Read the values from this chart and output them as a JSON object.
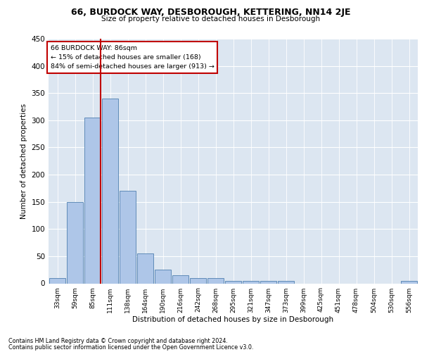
{
  "title": "66, BURDOCK WAY, DESBOROUGH, KETTERING, NN14 2JE",
  "subtitle": "Size of property relative to detached houses in Desborough",
  "xlabel": "Distribution of detached houses by size in Desborough",
  "ylabel": "Number of detached properties",
  "footer1": "Contains HM Land Registry data © Crown copyright and database right 2024.",
  "footer2": "Contains public sector information licensed under the Open Government Licence v3.0.",
  "annotation_line1": "66 BURDOCK WAY: 86sqm",
  "annotation_line2": "← 15% of detached houses are smaller (168)",
  "annotation_line3": "84% of semi-detached houses are larger (913) →",
  "bar_color": "#aec6e8",
  "bar_edge_color": "#5080b0",
  "vline_color": "#c00000",
  "plot_bg_color": "#dce6f1",
  "categories": [
    "33sqm",
    "59sqm",
    "85sqm",
    "111sqm",
    "138sqm",
    "164sqm",
    "190sqm",
    "216sqm",
    "242sqm",
    "268sqm",
    "295sqm",
    "321sqm",
    "347sqm",
    "373sqm",
    "399sqm",
    "425sqm",
    "451sqm",
    "478sqm",
    "504sqm",
    "530sqm",
    "556sqm"
  ],
  "values": [
    10,
    150,
    305,
    340,
    170,
    55,
    25,
    15,
    10,
    10,
    5,
    4,
    5,
    4,
    0,
    0,
    0,
    0,
    0,
    0,
    4
  ],
  "ylim": [
    0,
    450
  ],
  "yticks": [
    0,
    50,
    100,
    150,
    200,
    250,
    300,
    350,
    400,
    450
  ]
}
